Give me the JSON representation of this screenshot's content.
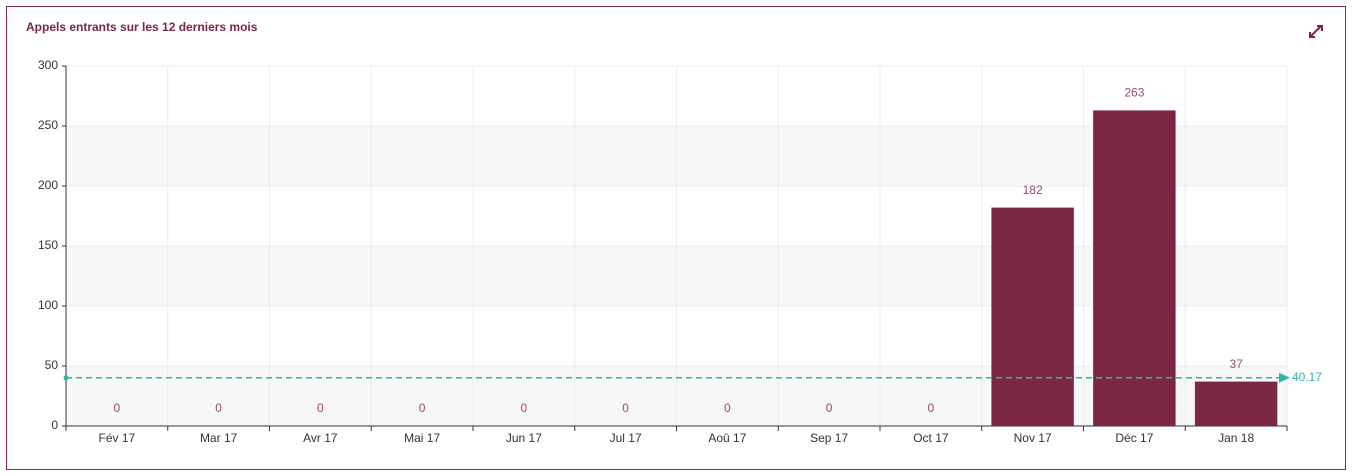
{
  "chart_data": {
    "type": "bar",
    "title": "Appels entrants sur les 12 derniers mois",
    "categories": [
      "Fév 17",
      "Mar 17",
      "Avr 17",
      "Mai 17",
      "Jun 17",
      "Jul 17",
      "Aoû 17",
      "Sep 17",
      "Oct 17",
      "Nov 17",
      "Déc 17",
      "Jan 18"
    ],
    "values": [
      0,
      0,
      0,
      0,
      0,
      0,
      0,
      0,
      0,
      182,
      263,
      37
    ],
    "color": "#7b2642",
    "ylim": [
      0,
      300
    ],
    "yticks": [
      0,
      50,
      100,
      150,
      200,
      250,
      300
    ],
    "grid": true,
    "mark_line": {
      "value": 40.17,
      "color": "#2bb5ac"
    }
  }
}
